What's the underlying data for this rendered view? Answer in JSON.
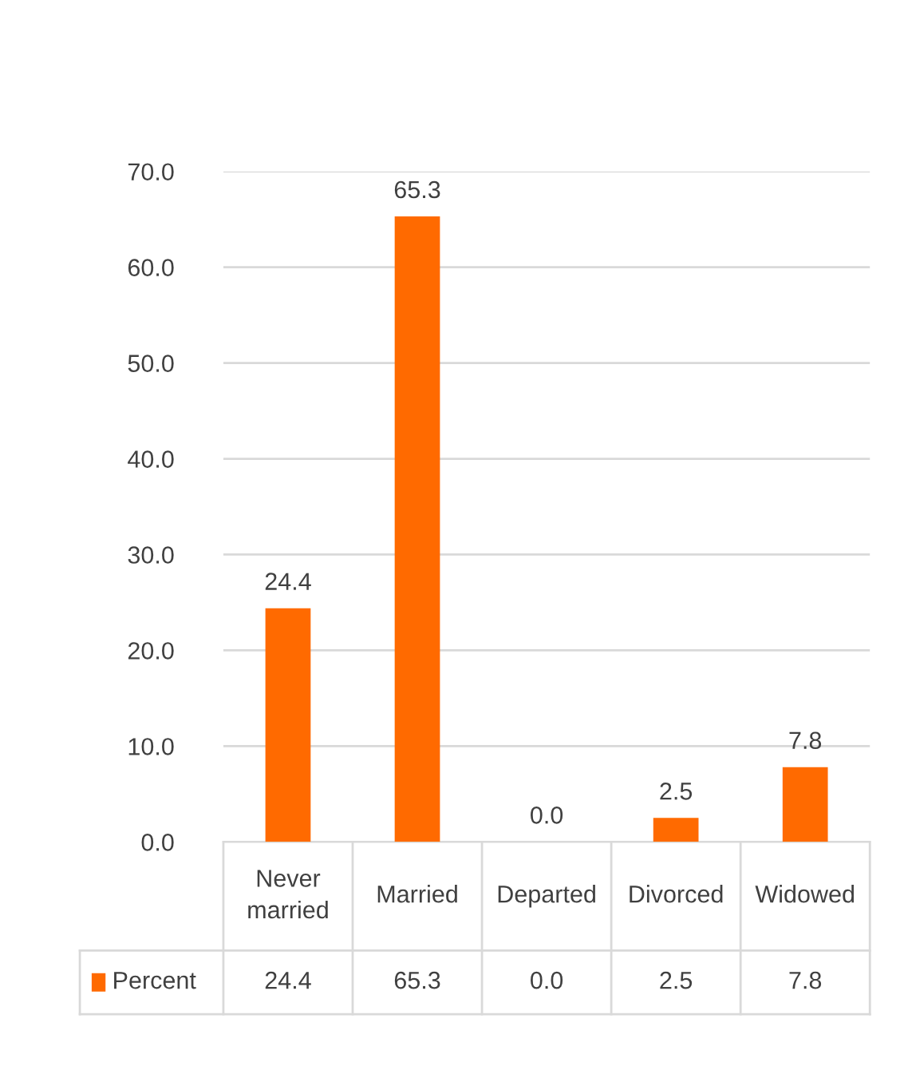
{
  "chart_data": {
    "type": "bar",
    "categories": [
      "Never married",
      "Married",
      "Departed",
      "Divorced",
      "Widowed"
    ],
    "series": [
      {
        "name": "Percent",
        "color": "#ff6a00",
        "values": [
          24.4,
          65.3,
          0.0,
          2.5,
          7.8
        ],
        "value_labels": [
          "24.4",
          "65.3",
          "0.0",
          "2.5",
          "7.8"
        ]
      }
    ],
    "ylim": [
      0,
      70
    ],
    "yticks": [
      {
        "value": 0,
        "label": "0.0"
      },
      {
        "value": 10,
        "label": "10.0"
      },
      {
        "value": 20,
        "label": "20.0"
      },
      {
        "value": 30,
        "label": "30.0"
      },
      {
        "value": 40,
        "label": "40.0"
      },
      {
        "value": 50,
        "label": "50.0"
      },
      {
        "value": 60,
        "label": "60.0"
      },
      {
        "value": 70,
        "label": "70.0"
      }
    ],
    "grid": "y",
    "legend": "bottom"
  }
}
